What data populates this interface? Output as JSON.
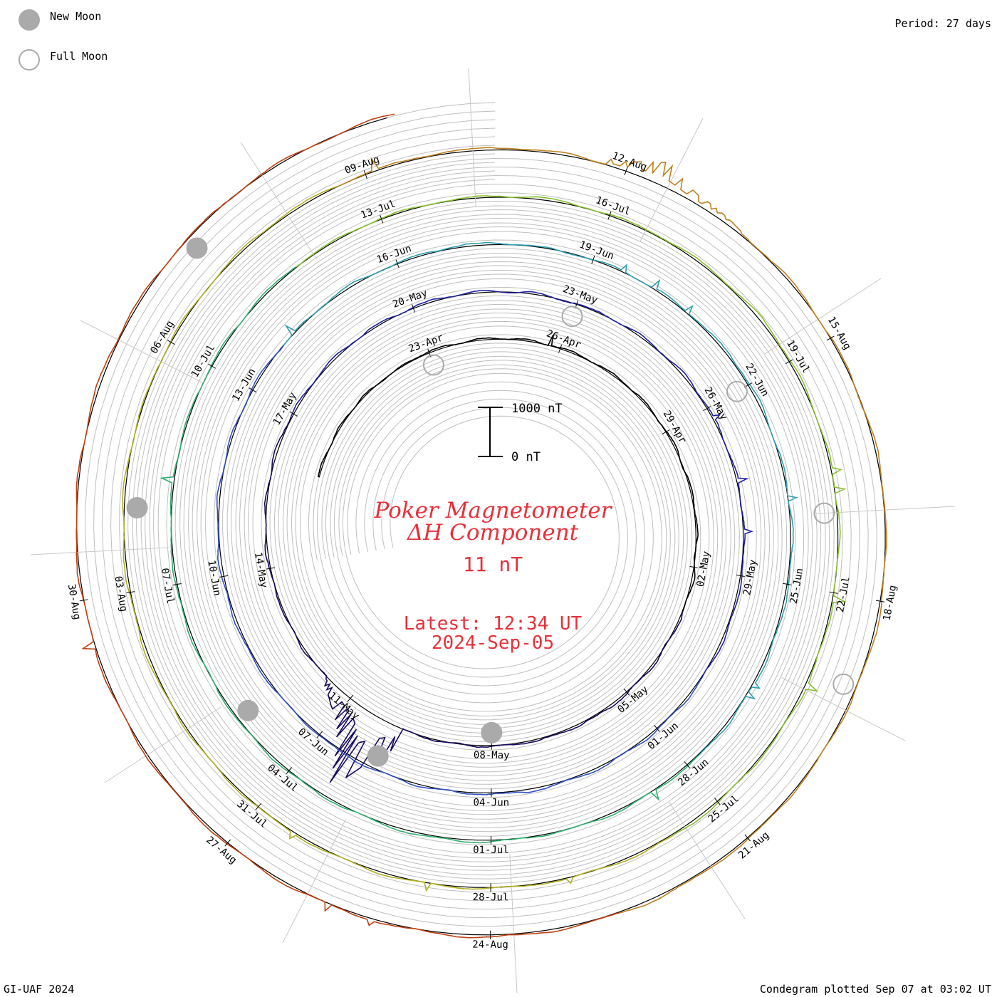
{
  "header": {
    "period": "Period: 27 days"
  },
  "legend": {
    "new_moon": "New Moon",
    "full_moon": "Full Moon",
    "new_moon_color": "#aaaaaa",
    "full_moon_color": "#aaaaaa"
  },
  "center": {
    "title_line1": "Poker Magnetometer",
    "title_line2": "ΔH Component",
    "value": "11 nT",
    "latest_line1": "Latest: 12:34 UT",
    "latest_line2": "2024-Sep-05",
    "scale_top": "1000 nT",
    "scale_bottom": "0 nT",
    "text_color": "#e8303a"
  },
  "footer": {
    "left": "GI-UAF 2024",
    "right": "Condegram plotted Sep 07 at 03:02 UT"
  },
  "chart_data": {
    "type": "line",
    "subtype": "condegram spiral",
    "period_days": 27,
    "series_start": "2024-Apr-19",
    "series_end": "2024-Sep-05",
    "date_labels": [
      "23-Apr",
      "26-Apr",
      "29-Apr",
      "02-May",
      "05-May",
      "08-May",
      "11-May",
      "14-May",
      "17-May",
      "20-May",
      "23-May",
      "26-May",
      "29-May",
      "01-Jun",
      "04-Jun",
      "07-Jun",
      "10-Jun",
      "13-Jun",
      "16-Jun",
      "19-Jun",
      "22-Jun",
      "25-Jun",
      "28-Jun",
      "01-Jul",
      "04-Jul",
      "07-Jul",
      "10-Jul",
      "13-Jul",
      "16-Jul",
      "19-Jul",
      "22-Jul",
      "25-Jul",
      "28-Jul",
      "31-Jul",
      "03-Aug",
      "06-Aug",
      "09-Aug",
      "12-Aug",
      "15-Aug",
      "18-Aug",
      "21-Aug",
      "24-Aug",
      "27-Aug",
      "30-Aug"
    ],
    "new_moon_dates": [
      "2024-May-08",
      "2024-Jun-06",
      "2024-Jul-05",
      "2024-Aug-04",
      "2024-Sep-03"
    ],
    "full_moon_dates": [
      "2024-Apr-23",
      "2024-May-23",
      "2024-Jun-22",
      "2024-Jul-21",
      "2024-Aug-19"
    ],
    "storm_events": [
      {
        "date": "2024-May-10",
        "max_delta_h_nT": 2300
      },
      {
        "date": "2024-Aug-12",
        "max_delta_h_nT": 600
      }
    ],
    "y_unit": "nT",
    "scale_bar": [
      0,
      1000
    ],
    "latest_value_nT": 11,
    "line_colors": [
      "#000000",
      "#1a0a60",
      "#2020a0",
      "#3050c0",
      "#2f9fb0",
      "#30b070",
      "#88c030",
      "#b0b020",
      "#c08020",
      "#c04010"
    ]
  }
}
